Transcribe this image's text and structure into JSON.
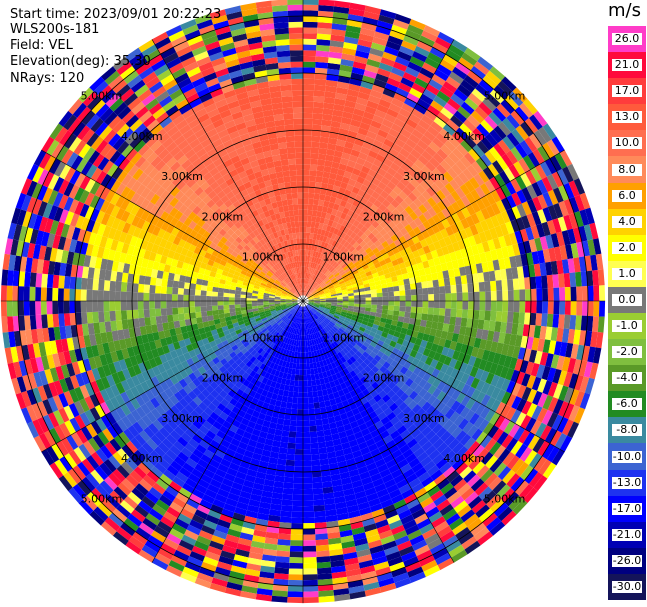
{
  "header": {
    "start_time": "Start time: 2023/09/01 20:22:23",
    "instrument": "WLS200s-181",
    "field": "Field: VEL",
    "elevation": "Elevation(deg): 35.30",
    "nrays": "NRays: 120"
  },
  "colorbar": {
    "unit": "m/s",
    "levels": [
      "26.0",
      "21.0",
      "17.0",
      "13.0",
      "10.0",
      "8.0",
      "6.0",
      "4.0",
      "2.0",
      "1.0",
      "0.0",
      "-1.0",
      "-2.0",
      "-4.0",
      "-6.0",
      "-8.0",
      "-10.0",
      "-13.0",
      "-17.0",
      "-21.0",
      "-26.0",
      "-30.0"
    ],
    "colors": [
      "#ff3cc8",
      "#ff0a3c",
      "#ff3c3c",
      "#ff5a3c",
      "#ff6e50",
      "#ff8a5a",
      "#ffa000",
      "#ffd200",
      "#ffff00",
      "#ffff50",
      "#787878",
      "#9acd32",
      "#7fbf3f",
      "#5a9a28",
      "#228b22",
      "#3a8aa0",
      "#3c64d2",
      "#1e32f0",
      "#0000ff",
      "#0000b4",
      "#000080",
      "#14145a"
    ]
  },
  "chart_data": {
    "type": "heatmap",
    "subtype": "radar-ppi",
    "field": "VEL",
    "units": "m/s",
    "n_rays": 120,
    "elevation_deg": 35.3,
    "range_rings_km": [
      1.0,
      2.0,
      3.0,
      4.0,
      5.0
    ],
    "ring_labels": [
      "1.00km",
      "2.00km",
      "3.00km",
      "4.00km",
      "5.00km"
    ],
    "azimuth_lines_deg": [
      0,
      30,
      60,
      90,
      120,
      150,
      180,
      210,
      240,
      270,
      300,
      330
    ],
    "max_range_km": 5.3,
    "valid_range_km": 3.9,
    "velocity_pattern": {
      "north_sector_ms": 14,
      "south_sector_ms": -16,
      "east_west_ms": 0
    }
  }
}
